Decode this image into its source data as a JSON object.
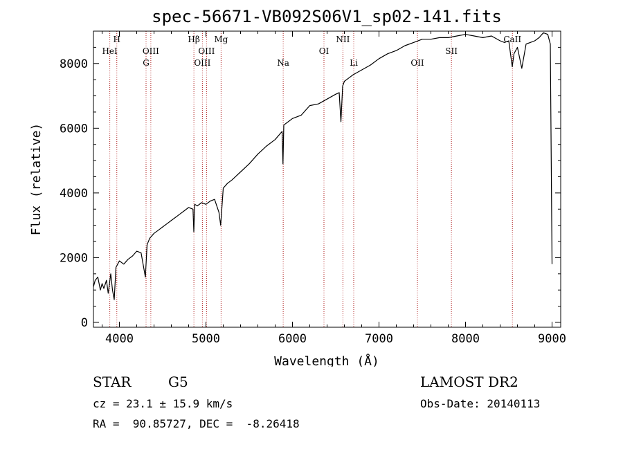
{
  "chart_data": {
    "type": "line",
    "title": "spec-56671-VB092S06V1_sp02-141.fits",
    "xlabel": "Wavelength (Å)",
    "ylabel": "Flux (relative)",
    "xlim": [
      3700,
      9100
    ],
    "ylim": [
      -150,
      9000
    ],
    "xticks": [
      4000,
      5000,
      6000,
      7000,
      8000,
      9000
    ],
    "yticks": [
      0,
      2000,
      4000,
      6000,
      8000
    ],
    "grid": false,
    "series": [
      {
        "x": [
          3700,
          3720,
          3750,
          3780,
          3800,
          3820,
          3850,
          3870,
          3900,
          3920,
          3940,
          3960,
          3980,
          4000,
          4050,
          4100,
          4150,
          4200,
          4250,
          4300,
          4320,
          4350,
          4400,
          4450,
          4500,
          4550,
          4600,
          4650,
          4700,
          4750,
          4800,
          4850,
          4860,
          4870,
          4900,
          4950,
          5000,
          5050,
          5100,
          5150,
          5170,
          5200,
          5250,
          5300,
          5400,
          5500,
          5600,
          5700,
          5800,
          5880,
          5890,
          5900,
          5950,
          6000,
          6100,
          6200,
          6300,
          6400,
          6500,
          6540,
          6560,
          6580,
          6600,
          6650,
          6700,
          6800,
          6900,
          7000,
          7100,
          7200,
          7300,
          7400,
          7500,
          7600,
          7700,
          7800,
          7900,
          8000,
          8100,
          8200,
          8300,
          8400,
          8450,
          8500,
          8540,
          8560,
          8600,
          8650,
          8700,
          8800,
          8850,
          8900,
          8950,
          8980,
          9000
        ],
        "y": [
          1100,
          1300,
          1400,
          1000,
          1200,
          1050,
          1300,
          900,
          1500,
          1000,
          700,
          1700,
          1800,
          1900,
          1800,
          1950,
          2050,
          2200,
          2150,
          1400,
          2400,
          2600,
          2750,
          2850,
          2950,
          3050,
          3150,
          3250,
          3350,
          3450,
          3550,
          3500,
          2800,
          3650,
          3600,
          3700,
          3650,
          3750,
          3800,
          3400,
          3000,
          4150,
          4300,
          4400,
          4650,
          4900,
          5200,
          5450,
          5650,
          5900,
          4900,
          6100,
          6200,
          6300,
          6400,
          6700,
          6750,
          6900,
          7050,
          7100,
          6200,
          7300,
          7450,
          7550,
          7650,
          7800,
          7950,
          8150,
          8300,
          8400,
          8550,
          8650,
          8750,
          8750,
          8800,
          8800,
          8850,
          8900,
          8850,
          8800,
          8850,
          8700,
          8650,
          8700,
          7900,
          8300,
          8500,
          7850,
          8600,
          8700,
          8800,
          8950,
          8900,
          8600,
          1800
        ]
      }
    ],
    "line_labels": [
      {
        "name": "HeI",
        "x": 3889,
        "row": 2
      },
      {
        "name": "H",
        "x": 3970,
        "row": 1
      },
      {
        "name": "OIII",
        "x": 4363,
        "row": 2
      },
      {
        "name": "G",
        "x": 4308,
        "row": 3
      },
      {
        "name": "Hβ",
        "x": 4861,
        "row": 1
      },
      {
        "name": "OIII",
        "x": 4959,
        "row": 3
      },
      {
        "name": "OIII",
        "x": 5007,
        "row": 2
      },
      {
        "name": "Mg",
        "x": 5175,
        "row": 1
      },
      {
        "name": "Na",
        "x": 5893,
        "row": 3
      },
      {
        "name": "OI",
        "x": 6364,
        "row": 2
      },
      {
        "name": "NII",
        "x": 6583,
        "row": 1
      },
      {
        "name": "Li",
        "x": 6708,
        "row": 3
      },
      {
        "name": "OII",
        "x": 7444,
        "row": 3
      },
      {
        "name": "SII",
        "x": 7837,
        "row": 2
      },
      {
        "name": "CaII",
        "x": 8542,
        "row": 1
      }
    ]
  },
  "info": {
    "object_class": "STAR",
    "subclass": "G5",
    "survey": "LAMOST DR2",
    "redshift": "cz = 23.1 ± 15.9 km/s",
    "obs_date": "Obs-Date: 20140113",
    "coords": "RA =  90.85727, DEC =  -8.26418"
  },
  "colors": {
    "line_marker": "#b02020",
    "spectrum": "#000000"
  }
}
